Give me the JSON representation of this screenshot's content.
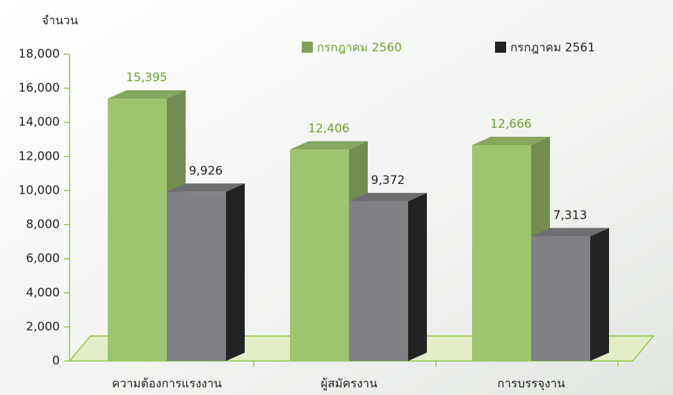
{
  "chart_data": {
    "type": "bar3d",
    "y_label": "จำนวน",
    "categories": [
      "ความต้องการแรงงาน",
      "ผู้สมัครงาน",
      "การบรรจุงาน"
    ],
    "series": [
      {
        "name": "กรกฎาคม 2560",
        "color": "#9dc46f",
        "label_color": "#6aa22e",
        "values": [
          15395,
          12406,
          12666
        ],
        "value_labels": [
          "15,395",
          "12,406",
          "12,666"
        ]
      },
      {
        "name": "กรกฎาคม 2561",
        "color": "#808184",
        "label_color": "#231f20",
        "values": [
          9926,
          9372,
          7313
        ],
        "value_labels": [
          "9,926",
          "9,372",
          "7,313"
        ]
      }
    ],
    "ylim": [
      0,
      18000
    ],
    "yticks": [
      {
        "value": 0,
        "label": "0"
      },
      {
        "value": 2000,
        "label": "2,000"
      },
      {
        "value": 4000,
        "label": "4,000"
      },
      {
        "value": 6000,
        "label": "6,000"
      },
      {
        "value": 8000,
        "label": "8,000"
      },
      {
        "value": 10000,
        "label": "10,000"
      },
      {
        "value": 12000,
        "label": "12,000"
      },
      {
        "value": 14000,
        "label": "14,000"
      },
      {
        "value": 16000,
        "label": "16,000"
      },
      {
        "value": 18000,
        "label": "18,000"
      }
    ]
  }
}
